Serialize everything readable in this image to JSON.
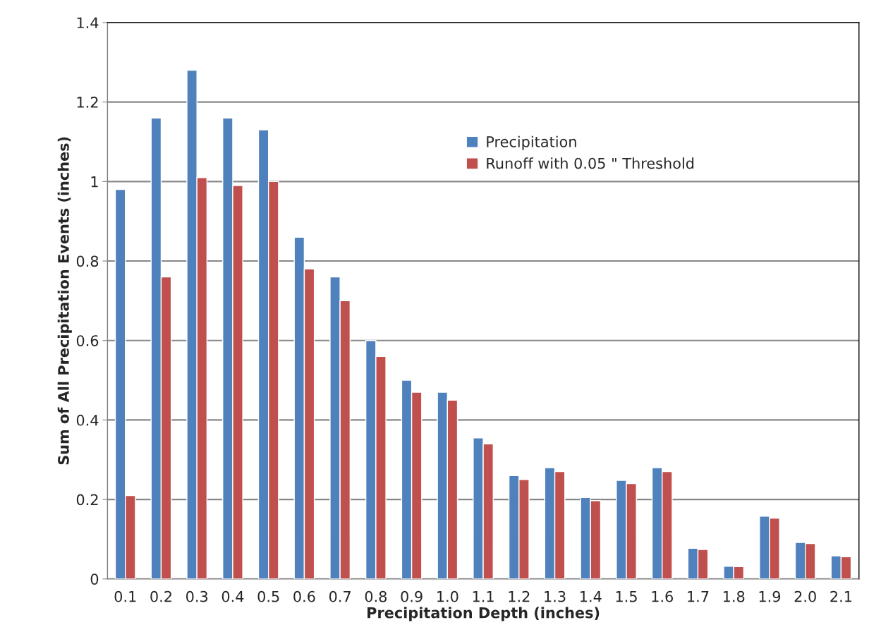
{
  "chart_data": {
    "type": "bar",
    "xlabel": "Precipitation Depth (inches)",
    "ylabel": "Sum of All Precipitation Events (inches)",
    "categories": [
      "0.1",
      "0.2",
      "0.3",
      "0.4",
      "0.5",
      "0.6",
      "0.7",
      "0.8",
      "0.9",
      "1.0",
      "1.1",
      "1.2",
      "1.3",
      "1.4",
      "1.5",
      "1.6",
      "1.7",
      "1.8",
      "1.9",
      "2.0",
      "2.1"
    ],
    "series": [
      {
        "name": "Precipitation",
        "color": "#4f81bd",
        "values": [
          0.98,
          1.16,
          1.28,
          1.16,
          1.13,
          0.86,
          0.76,
          0.6,
          0.5,
          0.47,
          0.355,
          0.26,
          0.28,
          0.205,
          0.248,
          0.28,
          0.077,
          0.032,
          0.158,
          0.092,
          0.058
        ]
      },
      {
        "name": "Runoff with 0.05 \" Threshold",
        "color": "#c0504d",
        "values": [
          0.21,
          0.76,
          1.01,
          0.99,
          1.0,
          0.78,
          0.7,
          0.56,
          0.47,
          0.45,
          0.34,
          0.25,
          0.27,
          0.197,
          0.24,
          0.27,
          0.074,
          0.031,
          0.153,
          0.089,
          0.056
        ]
      }
    ],
    "ylim": [
      0,
      1.4
    ],
    "yticks": [
      0,
      0.2,
      0.4,
      0.6,
      0.8,
      1,
      1.2,
      1.4
    ],
    "grid": "y",
    "legend": "top right"
  }
}
